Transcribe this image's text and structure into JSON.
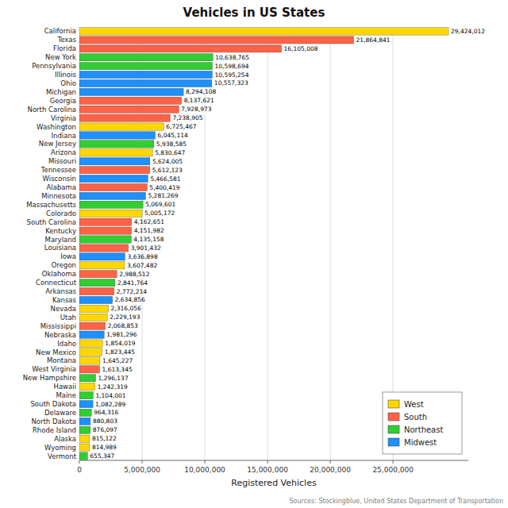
{
  "chart_data": {
    "type": "bar",
    "orientation": "horizontal",
    "stacked": true,
    "data_labels": true,
    "title": "Vehicles in US States",
    "x_label": "Registered Vehicles",
    "annotations": [
      "Sources: Stockingblue, United States Department of Transportation"
    ],
    "categories": [
      "California",
      "Texas",
      "Florida",
      "New York",
      "Pennsylvania",
      "Illinois",
      "Ohio",
      "Michigan",
      "Georgia",
      "North Carolina",
      "Virginia",
      "Washington",
      "Indiana",
      "New Jersey",
      "Arizona",
      "Missouri",
      "Tennessee",
      "Wisconsin",
      "Alabama",
      "Minnesota",
      "Massachusetts",
      "Colorado",
      "South Carolina",
      "Kentucky",
      "Maryland",
      "Louisiana",
      "Iowa",
      "Oregon",
      "Oklahoma",
      "Connecticut",
      "Arkansas",
      "Kansas",
      "Nevada",
      "Utah",
      "Mississippi",
      "Nebraska",
      "Idaho",
      "New Mexico",
      "Montana",
      "West Virginia",
      "New Hampshire",
      "Hawaii",
      "Maine",
      "South Dakota",
      "Delaware",
      "North Dakota",
      "Rhode Island",
      "Alaska",
      "Wyoming",
      "Vermont"
    ],
    "series": [
      {
        "name": "West",
        "color": "#FFD700",
        "values": [
          29424012,
          null,
          null,
          null,
          null,
          null,
          null,
          null,
          null,
          null,
          null,
          6725467,
          null,
          null,
          5830647,
          null,
          null,
          null,
          null,
          null,
          null,
          5005172,
          null,
          null,
          null,
          null,
          null,
          3607482,
          null,
          null,
          null,
          null,
          2316056,
          2229193,
          null,
          null,
          1854019,
          1823445,
          1645227,
          null,
          null,
          1242319,
          null,
          null,
          null,
          null,
          null,
          815122,
          814989,
          null
        ],
        "value_labels": [
          "29,424,012",
          null,
          null,
          null,
          null,
          null,
          null,
          null,
          null,
          null,
          null,
          "6,725,467",
          null,
          null,
          "5,830,647",
          null,
          null,
          null,
          null,
          null,
          null,
          "5,005,172",
          null,
          null,
          null,
          null,
          null,
          "3,607,482",
          null,
          null,
          null,
          null,
          "2,316,056",
          "2,229,193",
          null,
          null,
          "1,854,019",
          "1,823,445",
          "1,645,227",
          null,
          null,
          "1,242,319",
          null,
          null,
          null,
          null,
          null,
          "815,122",
          "814,989",
          null
        ]
      },
      {
        "name": "South",
        "color": "#FF6347",
        "values": [
          null,
          21864841,
          16105008,
          null,
          null,
          null,
          null,
          null,
          8137621,
          7928973,
          7238905,
          null,
          null,
          null,
          null,
          null,
          5612123,
          null,
          5400419,
          null,
          null,
          null,
          4162651,
          4151982,
          null,
          3901432,
          null,
          null,
          2988512,
          null,
          2772214,
          null,
          null,
          null,
          2068853,
          null,
          null,
          null,
          null,
          1613345,
          null,
          null,
          null,
          null,
          null,
          null,
          null,
          null,
          null,
          null
        ],
        "value_labels": [
          null,
          "21,864,841",
          "16,105,008",
          null,
          null,
          null,
          null,
          null,
          "8,137,621",
          "7,928,973",
          "7,238,905",
          null,
          null,
          null,
          null,
          null,
          "5,612,123",
          null,
          "5,400,419",
          null,
          null,
          null,
          "4,162,651",
          "4,151,982",
          null,
          "3,901,432",
          null,
          null,
          "2,988,512",
          null,
          "2,772,214",
          null,
          null,
          null,
          "2,068,853",
          null,
          null,
          null,
          null,
          "1,613,345",
          null,
          null,
          null,
          null,
          null,
          null,
          null,
          null,
          null,
          null
        ]
      },
      {
        "name": "Northeast",
        "color": "#32CD32",
        "values": [
          null,
          null,
          null,
          10638765,
          10598694,
          null,
          null,
          null,
          null,
          null,
          null,
          null,
          null,
          5938585,
          null,
          null,
          null,
          null,
          null,
          null,
          5069601,
          null,
          null,
          null,
          4135158,
          null,
          null,
          null,
          null,
          2841764,
          null,
          null,
          null,
          null,
          null,
          null,
          null,
          null,
          null,
          null,
          1296137,
          null,
          1104001,
          null,
          964316,
          null,
          876097,
          null,
          null,
          655347
        ],
        "value_labels": [
          null,
          null,
          null,
          "10,638,765",
          "10,598,694",
          null,
          null,
          null,
          null,
          null,
          null,
          null,
          null,
          "5,938,585",
          null,
          null,
          null,
          null,
          null,
          null,
          "5,069,601",
          null,
          null,
          null,
          "4,135,158",
          null,
          null,
          null,
          null,
          "2,841,764",
          null,
          null,
          null,
          null,
          null,
          null,
          null,
          null,
          null,
          null,
          "1,296,137",
          null,
          "1,104,001",
          null,
          "964,316",
          null,
          "876,097",
          null,
          null,
          "655,347"
        ]
      },
      {
        "name": "Midwest",
        "color": "#1E90FF",
        "values": [
          null,
          null,
          null,
          null,
          null,
          10595254,
          10557323,
          8294108,
          null,
          null,
          null,
          null,
          6045114,
          null,
          null,
          5624005,
          null,
          5466581,
          null,
          5281269,
          null,
          null,
          null,
          null,
          null,
          null,
          3636898,
          null,
          null,
          null,
          null,
          2634856,
          null,
          null,
          null,
          1981296,
          null,
          null,
          null,
          null,
          null,
          null,
          null,
          1082289,
          null,
          880803,
          null,
          null,
          null,
          null
        ],
        "value_labels": [
          null,
          null,
          null,
          null,
          null,
          "10,595,254",
          "10,557,323",
          "8,294,108",
          null,
          null,
          null,
          null,
          "6,045,114",
          null,
          null,
          "5,624,005",
          null,
          "5,466,581",
          null,
          "5,281,269",
          null,
          null,
          null,
          null,
          null,
          null,
          "3,636,898",
          null,
          null,
          null,
          null,
          "2,634,856",
          null,
          null,
          null,
          "1,981,296",
          null,
          null,
          null,
          null,
          null,
          null,
          null,
          "1,082,289",
          null,
          "880,803",
          null,
          null,
          null,
          null
        ]
      }
    ],
    "xlim": [
      0,
      31000000
    ],
    "xticks": [
      0,
      {
        "value": 5000000,
        "label": "5,000,000"
      },
      {
        "value": 10000000,
        "label": "10,000,000"
      },
      {
        "value": 15000000,
        "label": "15,000,000"
      },
      {
        "value": 20000000,
        "label": "20,000,000"
      },
      {
        "value": 25000000,
        "label": "25,000,000"
      }
    ],
    "grid": true,
    "legend": "lower right"
  }
}
